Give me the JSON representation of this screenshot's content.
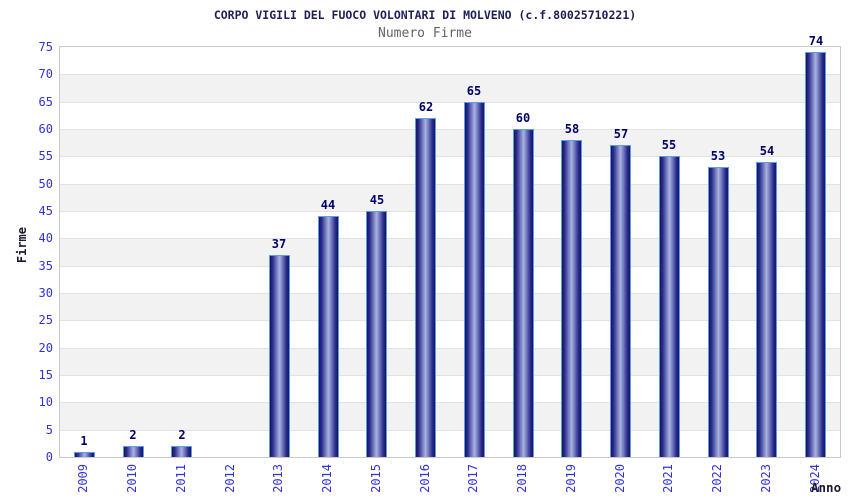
{
  "header": {
    "title": "CORPO VIGILI DEL FUOCO VOLONTARI DI MOLVENO (c.f.80025710221)",
    "subtitle": "Numero Firme"
  },
  "chart_data": {
    "type": "bar",
    "title": "CORPO VIGILI DEL FUOCO VOLONTARI DI MOLVENO (c.f.80025710221)",
    "subtitle": "Numero Firme",
    "xlabel": "Anno",
    "ylabel": "Firme",
    "categories": [
      "2009",
      "2010",
      "2011",
      "2012",
      "2013",
      "2014",
      "2015",
      "2016",
      "2017",
      "2018",
      "2019",
      "2020",
      "2021",
      "2022",
      "2023",
      "2024"
    ],
    "values": [
      1,
      2,
      2,
      0,
      37,
      44,
      45,
      62,
      65,
      60,
      58,
      57,
      55,
      53,
      54,
      74
    ],
    "ylim": [
      0,
      75
    ],
    "ytick_step": 5,
    "grid": true,
    "legend": "none",
    "bar_labels_shown": true,
    "colors": {
      "bar_dark": "#15155e",
      "bar_mid": "#2c2c8e",
      "bar_light": "#aab3de",
      "bar_border": "#5b9de8",
      "tick_label": "#3232dd",
      "value_label": "#00006b",
      "title": "#1f1f56",
      "subtitle": "#646464",
      "band": "#f2f2f2",
      "gridline": "#e2e2e2"
    }
  }
}
